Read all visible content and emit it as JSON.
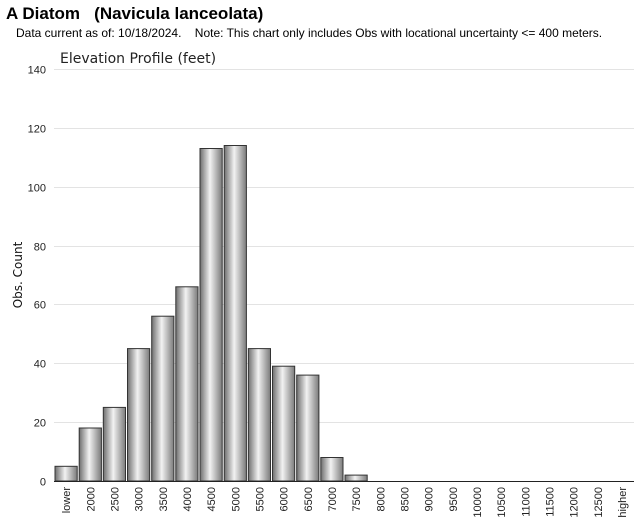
{
  "header": {
    "title": "A Diatom   (Navicula lanceolata)",
    "note": "Data current as of: 10/18/2024.    Note: This chart only includes Obs with locational uncertainty <= 400 meters."
  },
  "chart_data": {
    "type": "bar",
    "title": "Elevation Profile (feet)",
    "xlabel": "",
    "ylabel": "Obs. Count",
    "ylim": [
      0,
      140
    ],
    "yticks": [
      0,
      20,
      40,
      60,
      80,
      100,
      120,
      140
    ],
    "grid": true,
    "categories": [
      "lower",
      "2000",
      "2500",
      "3000",
      "3500",
      "4000",
      "4500",
      "5000",
      "5500",
      "6000",
      "6500",
      "7000",
      "7500",
      "8000",
      "8500",
      "9000",
      "9500",
      "10000",
      "10500",
      "11000",
      "11500",
      "12000",
      "12500",
      "higher"
    ],
    "values": [
      5,
      18,
      25,
      45,
      56,
      66,
      113,
      114,
      45,
      39,
      36,
      8,
      2,
      0,
      0,
      0,
      0,
      0,
      0,
      0,
      0,
      0,
      0,
      0
    ],
    "bar_color": "#b5b5b5"
  }
}
